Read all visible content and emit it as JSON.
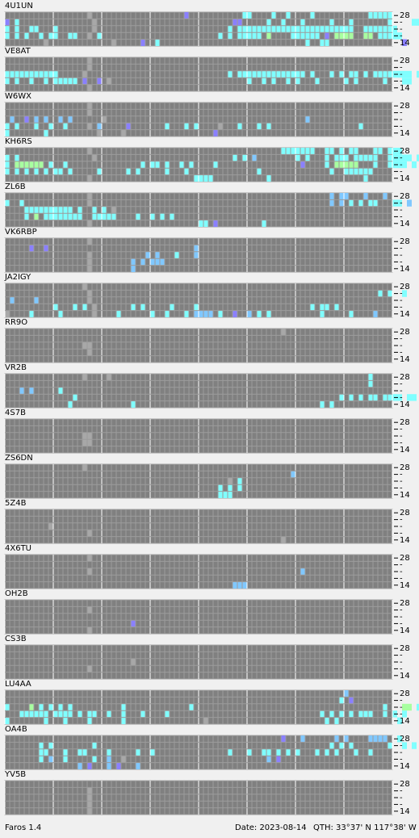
{
  "grid": {
    "columns": 80,
    "row_labels": [
      "28",
      "-",
      "-",
      "-",
      "14"
    ],
    "background": "#808080",
    "palette": {
      "c": "#80ffff",
      "g": "#a8ffa0",
      "b": "#8a80ff",
      "l": "#80c8ff",
      "d": "#a8a8a8"
    }
  },
  "stations": [
    {
      "name": "4U1UN",
      "rows": [
        "17.d19.b11.2c4.c2.c4.c11.5c",
        "b1.c15.d28.2b5.c2.c3.c5.c3.c7.c4.2c3.3c",
        "c1.c2.2c3.c7.d27.c1.24c2.7c",
        "c1.c1.c2.c1.2c2.2c2.d1.c24.c1.c1.5c1.g4.6c1.b1.4g2.2g1.5c",
        "8.d13.d5.b2.c30.c2.2c15.b3.c10.c"
      ]
    },
    {
      "name": "VE8AT",
      "rows": [
        "17.d",
        "17.d",
        "11c5.d29.c1.14c1.c3.c1.c1.2c1.c1.8c1.c1.3c1.c",
        "c1.c2.c2.c1.5c1.b2.b1.d28.c2.c1.c2.c1.c3.c5.c1.c5.c3.2c2.c",
        "17.d"
      ]
    },
    {
      "name": "W6WX",
      "rows": [
        "17.d",
        "17.d",
        "1.l2.b1.l1.l2.l1.l6.d41.l",
        "c1.c3.c2.c2.c4.d1.l5.b7.c3.c1.c4.d3.c3.c1.c18.c15.l1.b",
        "c7.c10.d4.d18.b47.c4.c"
      ]
    },
    {
      "name": "KH6RS",
      "rows": [
        "17.d39.7c2.2c1.c1.2c3.2c1.3c",
        "c1.c15.d28.c1.c1.l8.c1.c3.c1.3c1.5c2.5c1.2c2.c",
        "c1.6g1.c2.c15.c1.2c1.c2.c1.c4.c17.b4.c1.5g3.c2.4c1.c2.c2.c",
        "c1.c1.c1.c1.c1.2c1.c5.c5.c1.c5.c3.c14.c14.c2.6c",
        "17.d21.4c11.c19.c12.c"
      ]
    },
    {
      "name": "ZL6B",
      "rows": [
        "17.d49.l1.2l3.l3.l",
        "c2.c13.d49.l1.l1.c1.c1.2c3.2c1.l3.l",
        "4.10c1.c2.c1.c1.d",
        "4.c1.g1.8c2.5c4.c2.c1.c1.c",
        "17.d22.2c1.b9.c"
      ]
    },
    {
      "name": "VK6RBP",
      "rows": [
        "17.d",
        "5.b2.b30.l",
        "17.d11.l1.l3.c3.l",
        "17.d8.l1.l1.3l",
        "17.d8.l"
      ]
    },
    {
      "name": "JA2IGY",
      "rows": [
        "16.d",
        "17.d59.c1.c2.c",
        "1.l4.l10.d",
        "10.c3.c1.c1.d7.c1.c5.c4.c23.c1.2c1.c18.c2.c1.l",
        "d4.c5.c6.d4.c6.c2.c3.c1.4l1.c2.b2.l1.c1.c10.c5.c4.l"
      ]
    },
    {
      "name": "RR9O",
      "rows": [
        "57.d",
        "",
        "16.2d",
        "17.d",
        ""
      ]
    },
    {
      "name": "VR2B",
      "rows": [
        "16.d4.d53.c",
        "75.c",
        "3.l1.l5.c",
        "14.c54.c1.c1.c1.2c1.4c1.2c1.c3.c",
        "13.c12.c38.c1.c"
      ]
    },
    {
      "name": "4S7B",
      "rows": [
        "",
        "",
        "16.2d",
        "16.2d",
        ""
      ]
    },
    {
      "name": "ZS6DN",
      "rows": [
        "16.d",
        "59.l",
        "46.d1.c",
        "44.c1.c1.c",
        "44.3c"
      ]
    },
    {
      "name": "5Z4B",
      "rows": [
        "",
        "",
        "9.d",
        "17.d",
        "57.d"
      ]
    },
    {
      "name": "4X6TU",
      "rows": [
        "17.d",
        "",
        "17.d43.l",
        "",
        "47.3l"
      ]
    },
    {
      "name": "OH2B",
      "rows": [
        "",
        "17.d",
        "",
        "26.b",
        "17.d"
      ]
    },
    {
      "name": "CS3B",
      "rows": [
        "",
        "",
        "26.d",
        "17.d",
        ""
      ]
    },
    {
      "name": "LU4AA",
      "rows": [
        "70.l",
        "69.c1.b",
        "c4.g1.c1.c1.c1.c10.c13.c39.c3.2g1.c1.c",
        "3.6c1.4c1.c1.2c2.c2.c3.c4.c31.c1.c1.c1.c1.3c2.c1.c1.c",
        "c7.c3.c4.c6.c16.d24.c1.c12.c13.c"
      ]
    },
    {
      "name": "OA4B",
      "rows": [
        "57.b3.l6.l1.l4.4l2.c",
        "7.c1.c8.c48.c1.c1.c7.c2.c1.c3.c2.c1.3c1.c",
        "7.2c3.c2.2c4.c5.c2.c15.c3.c2.2c1.c1.c1.c3.c1.c1.c3.c2.c",
        "7.c1.l2.c5.c2.l2.d29.l1.b",
        "15.l1.b3.l1.b3.l"
      ]
    },
    {
      "name": "YV5B",
      "rows": [
        "",
        "17.d",
        "17.d",
        "17.d",
        "17.d"
      ]
    }
  ],
  "footer": {
    "app": "Faros 1.4",
    "date": "Date: 2023-08-14",
    "qth": "QTH: 33°37' N  117°38' W"
  }
}
